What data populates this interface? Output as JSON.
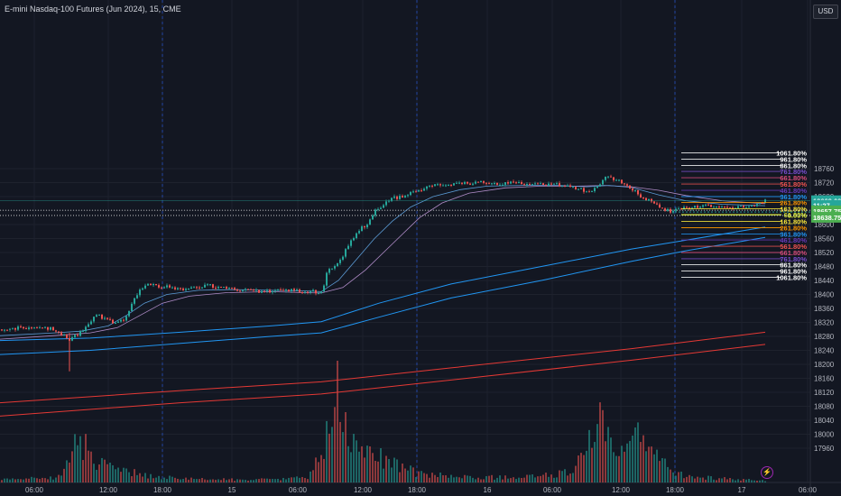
{
  "header": {
    "title": "E-mini Nasdaq-100 Futures (Jun 2024), 15, CME",
    "currency": "USD"
  },
  "colors": {
    "background": "#131722",
    "bull": "#26a69a",
    "bear": "#ef5350",
    "ema_fast": "#5b9bd5",
    "ema_slow": "#b08cc8",
    "ma_blue": "#2196f3",
    "ma_red": "#e53935",
    "axis_text": "#b2b5be",
    "last_price_tag": "#26a69a",
    "bid_tag": "#4caf50"
  },
  "icons": {
    "flash": "lightning-bolt-icon"
  },
  "chart_data": {
    "type": "candlestick",
    "symbol": "E-mini Nasdaq-100 Futures (Jun 2024)",
    "interval": "15",
    "exchange": "CME",
    "currency": "USD",
    "ylim": [
      17940,
      18810
    ],
    "y_ticks": [
      17960,
      18000,
      18040,
      18080,
      18120,
      18160,
      18200,
      18240,
      18280,
      18320,
      18360,
      18400,
      18440,
      18480,
      18520,
      18560,
      18600,
      18640,
      18680,
      18720,
      18760
    ],
    "x_ticks": [
      "06:00",
      "12:00",
      "18:00",
      "15",
      "06:00",
      "12:00",
      "18:00",
      "16",
      "06:00",
      "12:00",
      "18:00",
      "17",
      "06:00"
    ],
    "price_tags": [
      {
        "label": "18668.00",
        "price": 18668,
        "color": "#26a69a"
      },
      {
        "label": "11:27",
        "price": 18655,
        "color": "#26a69a"
      },
      {
        "label": "18657.75",
        "price": 18639,
        "color": "#4caf50"
      },
      {
        "label": "18638.75",
        "price": 18621,
        "color": "#4caf50"
      }
    ],
    "fib_levels": [
      {
        "label": "1061.80%",
        "price": 18805,
        "color": "#ffffff"
      },
      {
        "label": "961.80%",
        "price": 18787,
        "color": "#ffffff"
      },
      {
        "label": "861.80%",
        "price": 18769,
        "color": "#ffffff"
      },
      {
        "label": "761.80%",
        "price": 18752,
        "color": "#7b4fd0"
      },
      {
        "label": "661.80%",
        "price": 18734,
        "color": "#d84d7b"
      },
      {
        "label": "561.80%",
        "price": 18716,
        "color": "#ef5350"
      },
      {
        "label": "461.80%",
        "price": 18698,
        "color": "#673ab7"
      },
      {
        "label": "361.80%",
        "price": 18680,
        "color": "#2196f3"
      },
      {
        "label": "261.80%",
        "price": 18663,
        "color": "#ff9800"
      },
      {
        "label": "161.80%",
        "price": 18645,
        "color": "#ffeb3b"
      },
      {
        "label": "61.80%",
        "price": 18629,
        "color": "#cddc39"
      },
      {
        "label": "0.00%",
        "price": 18627,
        "color": "#cddc39"
      },
      {
        "label": "161.80%",
        "price": 18609,
        "color": "#ffeb3b"
      },
      {
        "label": "261.80%",
        "price": 18591,
        "color": "#ff9800"
      },
      {
        "label": "361.80%",
        "price": 18573,
        "color": "#2196f3"
      },
      {
        "label": "461.80%",
        "price": 18556,
        "color": "#673ab7"
      },
      {
        "label": "561.80%",
        "price": 18538,
        "color": "#ef5350"
      },
      {
        "label": "661.80%",
        "price": 18520,
        "color": "#d84d7b"
      },
      {
        "label": "761.80%",
        "price": 18502,
        "color": "#7b4fd0"
      },
      {
        "label": "861.80%",
        "price": 18485,
        "color": "#ffffff"
      },
      {
        "label": "961.80%",
        "price": 18467,
        "color": "#ffffff"
      },
      {
        "label": "1061.80%",
        "price": 18449,
        "color": "#ffffff"
      }
    ],
    "price_path": [
      [
        0,
        18300
      ],
      [
        20,
        18304
      ],
      [
        40,
        18306
      ],
      [
        60,
        18300
      ],
      [
        75,
        18270
      ],
      [
        85,
        18285
      ],
      [
        95,
        18310
      ],
      [
        105,
        18345
      ],
      [
        115,
        18330
      ],
      [
        125,
        18320
      ],
      [
        135,
        18325
      ],
      [
        145,
        18370
      ],
      [
        155,
        18420
      ],
      [
        165,
        18430
      ],
      [
        175,
        18420
      ],
      [
        185,
        18425
      ],
      [
        200,
        18415
      ],
      [
        215,
        18418
      ],
      [
        230,
        18425
      ],
      [
        245,
        18420
      ],
      [
        260,
        18415
      ],
      [
        275,
        18412
      ],
      [
        290,
        18408
      ],
      [
        305,
        18410
      ],
      [
        320,
        18412
      ],
      [
        335,
        18410
      ],
      [
        350,
        18408
      ],
      [
        356,
        18405
      ],
      [
        362,
        18470
      ],
      [
        372,
        18480
      ],
      [
        385,
        18540
      ],
      [
        395,
        18580
      ],
      [
        405,
        18600
      ],
      [
        415,
        18640
      ],
      [
        425,
        18660
      ],
      [
        435,
        18675
      ],
      [
        445,
        18680
      ],
      [
        455,
        18690
      ],
      [
        465,
        18700
      ],
      [
        475,
        18710
      ],
      [
        490,
        18712
      ],
      [
        505,
        18716
      ],
      [
        520,
        18718
      ],
      [
        535,
        18721
      ],
      [
        550,
        18716
      ],
      [
        565,
        18718
      ],
      [
        580,
        18716
      ],
      [
        595,
        18714
      ],
      [
        610,
        18716
      ],
      [
        625,
        18710
      ],
      [
        640,
        18705
      ],
      [
        650,
        18690
      ],
      [
        660,
        18705
      ],
      [
        670,
        18735
      ],
      [
        680,
        18728
      ],
      [
        690,
        18720
      ],
      [
        700,
        18700
      ],
      [
        710,
        18678
      ],
      [
        720,
        18670
      ],
      [
        730,
        18650
      ],
      [
        740,
        18638
      ],
      [
        750,
        18642
      ],
      [
        760,
        18648
      ],
      [
        770,
        18650
      ],
      [
        780,
        18652
      ],
      [
        790,
        18655
      ],
      [
        800,
        18650
      ],
      [
        810,
        18648
      ],
      [
        820,
        18650
      ],
      [
        830,
        18652
      ],
      [
        840,
        18658
      ],
      [
        848,
        18668
      ]
    ],
    "ema_fast_path": [
      [
        0,
        18282
      ],
      [
        60,
        18290
      ],
      [
        90,
        18295
      ],
      [
        120,
        18310
      ],
      [
        140,
        18340
      ],
      [
        160,
        18375
      ],
      [
        185,
        18400
      ],
      [
        220,
        18412
      ],
      [
        260,
        18414
      ],
      [
        300,
        18412
      ],
      [
        340,
        18410
      ],
      [
        356,
        18408
      ],
      [
        375,
        18440
      ],
      [
        395,
        18500
      ],
      [
        415,
        18560
      ],
      [
        435,
        18610
      ],
      [
        455,
        18650
      ],
      [
        480,
        18680
      ],
      [
        510,
        18700
      ],
      [
        540,
        18710
      ],
      [
        580,
        18712
      ],
      [
        620,
        18712
      ],
      [
        650,
        18708
      ],
      [
        675,
        18712
      ],
      [
        700,
        18706
      ],
      [
        730,
        18685
      ],
      [
        760,
        18668
      ],
      [
        800,
        18658
      ],
      [
        848,
        18654
      ]
    ],
    "ema_slow_path": [
      [
        0,
        18272
      ],
      [
        60,
        18282
      ],
      [
        100,
        18290
      ],
      [
        130,
        18305
      ],
      [
        155,
        18340
      ],
      [
        180,
        18375
      ],
      [
        210,
        18395
      ],
      [
        250,
        18405
      ],
      [
        300,
        18408
      ],
      [
        340,
        18405
      ],
      [
        356,
        18404
      ],
      [
        380,
        18420
      ],
      [
        405,
        18470
      ],
      [
        425,
        18520
      ],
      [
        445,
        18570
      ],
      [
        465,
        18620
      ],
      [
        490,
        18662
      ],
      [
        520,
        18690
      ],
      [
        560,
        18705
      ],
      [
        600,
        18710
      ],
      [
        640,
        18710
      ],
      [
        670,
        18712
      ],
      [
        700,
        18708
      ],
      [
        730,
        18698
      ],
      [
        760,
        18683
      ],
      [
        800,
        18668
      ],
      [
        848,
        18660
      ]
    ],
    "ma_blue_upper_path": [
      [
        0,
        18268
      ],
      [
        100,
        18275
      ],
      [
        200,
        18292
      ],
      [
        300,
        18310
      ],
      [
        356,
        18322
      ],
      [
        420,
        18375
      ],
      [
        500,
        18430
      ],
      [
        600,
        18480
      ],
      [
        700,
        18530
      ],
      [
        760,
        18555
      ],
      [
        848,
        18593
      ]
    ],
    "ma_blue_lower_path": [
      [
        0,
        18228
      ],
      [
        100,
        18240
      ],
      [
        200,
        18260
      ],
      [
        300,
        18280
      ],
      [
        356,
        18290
      ],
      [
        420,
        18335
      ],
      [
        500,
        18390
      ],
      [
        600,
        18440
      ],
      [
        700,
        18495
      ],
      [
        760,
        18525
      ],
      [
        848,
        18563
      ]
    ],
    "ma_red_upper_path": [
      [
        0,
        18090
      ],
      [
        200,
        18125
      ],
      [
        356,
        18150
      ],
      [
        500,
        18190
      ],
      [
        700,
        18245
      ],
      [
        848,
        18292
      ]
    ],
    "ma_red_lower_path": [
      [
        0,
        18052
      ],
      [
        200,
        18090
      ],
      [
        356,
        18115
      ],
      [
        500,
        18155
      ],
      [
        700,
        18212
      ],
      [
        848,
        18257
      ]
    ],
    "volume_profile": [
      [
        0,
        0.03
      ],
      [
        60,
        0.05
      ],
      [
        70,
        0.12
      ],
      [
        80,
        0.35
      ],
      [
        90,
        0.4
      ],
      [
        100,
        0.3
      ],
      [
        110,
        0.18
      ],
      [
        130,
        0.12
      ],
      [
        150,
        0.1
      ],
      [
        170,
        0.06
      ],
      [
        200,
        0.04
      ],
      [
        250,
        0.03
      ],
      [
        300,
        0.03
      ],
      [
        340,
        0.05
      ],
      [
        356,
        0.3
      ],
      [
        365,
        0.6
      ],
      [
        372,
        0.95
      ],
      [
        380,
        0.6
      ],
      [
        390,
        0.4
      ],
      [
        400,
        0.3
      ],
      [
        420,
        0.25
      ],
      [
        440,
        0.18
      ],
      [
        460,
        0.1
      ],
      [
        500,
        0.06
      ],
      [
        560,
        0.05
      ],
      [
        600,
        0.07
      ],
      [
        630,
        0.1
      ],
      [
        650,
        0.35
      ],
      [
        660,
        0.55
      ],
      [
        665,
        0.6
      ],
      [
        675,
        0.35
      ],
      [
        690,
        0.3
      ],
      [
        705,
        0.45
      ],
      [
        715,
        0.35
      ],
      [
        730,
        0.22
      ],
      [
        745,
        0.12
      ],
      [
        760,
        0.06
      ],
      [
        800,
        0.04
      ],
      [
        848,
        0.02
      ]
    ]
  }
}
